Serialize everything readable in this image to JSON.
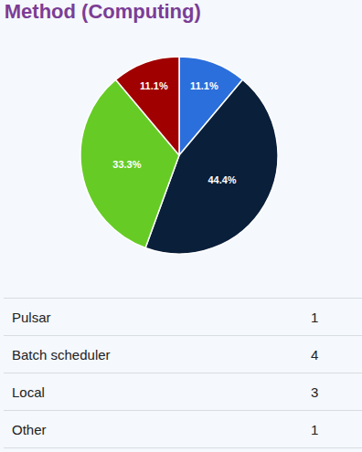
{
  "chart_data": {
    "type": "pie",
    "title": "Method (Computing)",
    "categories": [
      "Pulsar",
      "Batch scheduler",
      "Local",
      "Other"
    ],
    "values": [
      11.1,
      44.4,
      33.3,
      11.1
    ],
    "value_labels": [
      "11.1%",
      "44.4%",
      "33.3%",
      "11.1%"
    ],
    "colors": [
      "#2b6fdc",
      "#0a1f3a",
      "#66cc25",
      "#a00000"
    ],
    "data_labels": true
  },
  "table": {
    "rows": [
      [
        "Pulsar",
        1
      ],
      [
        "Batch scheduler",
        4
      ],
      [
        "Local",
        3
      ],
      [
        "Other",
        1
      ]
    ]
  }
}
